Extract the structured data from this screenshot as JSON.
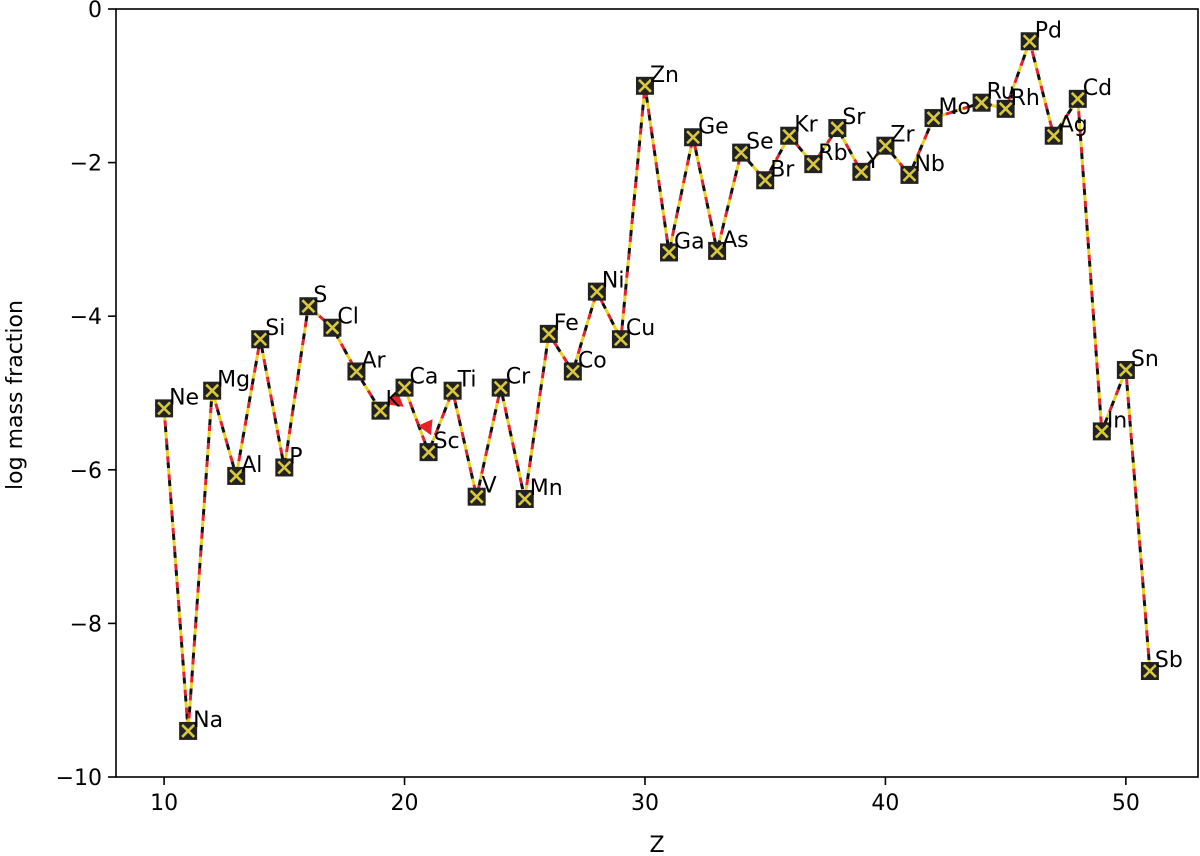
{
  "chart_data": {
    "type": "line",
    "title": "",
    "xlabel": "Z",
    "ylabel": "log mass fraction",
    "xlim": [
      8,
      53
    ],
    "ylim": [
      -10,
      0
    ],
    "xticks": [
      10,
      20,
      30,
      40,
      50
    ],
    "yticks": [
      0,
      -2,
      -4,
      -6,
      -8,
      -10
    ],
    "ytick_labels": [
      "0",
      "−2",
      "−4",
      "−6",
      "−8",
      "−10"
    ],
    "grid": false,
    "line_style": "dashed, alternating red / yellow / black segments",
    "marker": "square with x, black fill, yellow cross",
    "colors": {
      "dash1": "#e8202a",
      "dash2": "#e8d21c",
      "dash3": "#111111",
      "marker_fill": "#222222",
      "marker_cross": "#d9c83a"
    },
    "points": [
      {
        "label": "Ne",
        "x": 10,
        "y": -5.2
      },
      {
        "label": "Na",
        "x": 11,
        "y": -9.4
      },
      {
        "label": "Mg",
        "x": 12,
        "y": -4.97
      },
      {
        "label": "Al",
        "x": 13,
        "y": -6.08
      },
      {
        "label": "Si",
        "x": 14,
        "y": -4.3
      },
      {
        "label": "P",
        "x": 15,
        "y": -5.97
      },
      {
        "label": "S",
        "x": 16,
        "y": -3.87
      },
      {
        "label": "Cl",
        "x": 17,
        "y": -4.15
      },
      {
        "label": "Ar",
        "x": 18,
        "y": -4.72
      },
      {
        "label": "K",
        "x": 19,
        "y": -5.23
      },
      {
        "label": "Ca",
        "x": 20,
        "y": -4.93
      },
      {
        "label": "Sc",
        "x": 21,
        "y": -5.77
      },
      {
        "label": "Ti",
        "x": 22,
        "y": -4.97
      },
      {
        "label": "V",
        "x": 23,
        "y": -6.35
      },
      {
        "label": "Cr",
        "x": 24,
        "y": -4.93
      },
      {
        "label": "Mn",
        "x": 25,
        "y": -6.38
      },
      {
        "label": "Fe",
        "x": 26,
        "y": -4.23
      },
      {
        "label": "Co",
        "x": 27,
        "y": -4.72
      },
      {
        "label": "Ni",
        "x": 28,
        "y": -3.68
      },
      {
        "label": "Cu",
        "x": 29,
        "y": -4.3
      },
      {
        "label": "Zn",
        "x": 30,
        "y": -1.0
      },
      {
        "label": "Ga",
        "x": 31,
        "y": -3.17
      },
      {
        "label": "Ge",
        "x": 32,
        "y": -1.67
      },
      {
        "label": "As",
        "x": 33,
        "y": -3.15
      },
      {
        "label": "Se",
        "x": 34,
        "y": -1.87
      },
      {
        "label": "Br",
        "x": 35,
        "y": -2.23
      },
      {
        "label": "Kr",
        "x": 36,
        "y": -1.65
      },
      {
        "label": "Rb",
        "x": 37,
        "y": -2.02
      },
      {
        "label": "Sr",
        "x": 38,
        "y": -1.55
      },
      {
        "label": "Y",
        "x": 39,
        "y": -2.12
      },
      {
        "label": "Zr",
        "x": 40,
        "y": -1.78
      },
      {
        "label": "Nb",
        "x": 41,
        "y": -2.16
      },
      {
        "label": "Mo",
        "x": 42,
        "y": -1.42
      },
      {
        "label": "Ru",
        "x": 44,
        "y": -1.22
      },
      {
        "label": "Rh",
        "x": 45,
        "y": -1.3
      },
      {
        "label": "Pd",
        "x": 46,
        "y": -0.42
      },
      {
        "label": "Ag",
        "x": 47,
        "y": -1.65
      },
      {
        "label": "Cd",
        "x": 48,
        "y": -1.17
      },
      {
        "label": "In",
        "x": 49,
        "y": -5.5
      },
      {
        "label": "Sn",
        "x": 50,
        "y": -4.7
      },
      {
        "label": "Sb",
        "x": 51,
        "y": -8.62
      }
    ]
  }
}
